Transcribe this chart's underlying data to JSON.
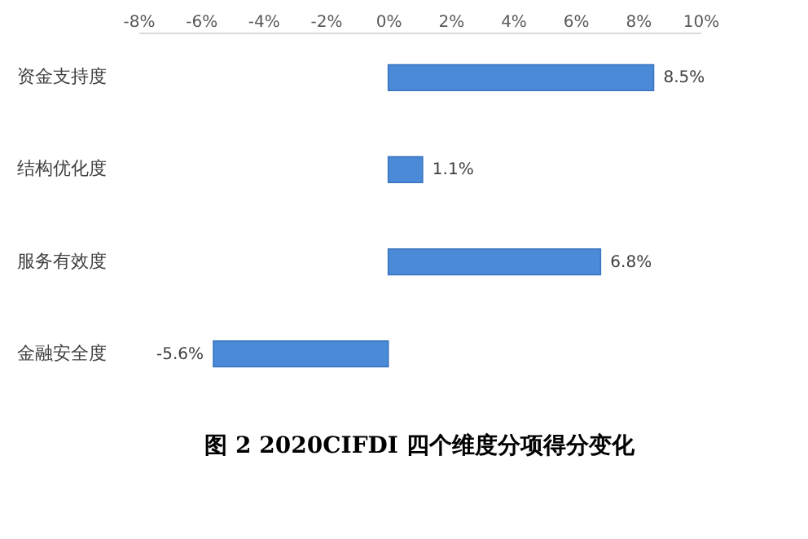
{
  "chart_data": {
    "type": "bar",
    "orientation": "horizontal",
    "title": "图 2 2020CIFDI 四个维度分项得分变化",
    "categories": [
      "资金支持度",
      "结构优化度",
      "服务有效度",
      "金融安全度"
    ],
    "values": [
      8.5,
      1.1,
      6.8,
      -5.6
    ],
    "value_labels": [
      "8.5%",
      "1.1%",
      "6.8%",
      "-5.6%"
    ],
    "color": "#4a8ad6",
    "xlim": [
      -8,
      10
    ],
    "xticks": [
      {
        "value": -8,
        "label": "-8%"
      },
      {
        "value": -6,
        "label": "-6%"
      },
      {
        "value": -4,
        "label": "-4%"
      },
      {
        "value": -2,
        "label": "-2%"
      },
      {
        "value": 0,
        "label": "0%"
      },
      {
        "value": 2,
        "label": "2%"
      },
      {
        "value": 4,
        "label": "4%"
      },
      {
        "value": 6,
        "label": "6%"
      },
      {
        "value": 8,
        "label": "8%"
      },
      {
        "value": 10,
        "label": "10%"
      }
    ],
    "grid": false
  }
}
